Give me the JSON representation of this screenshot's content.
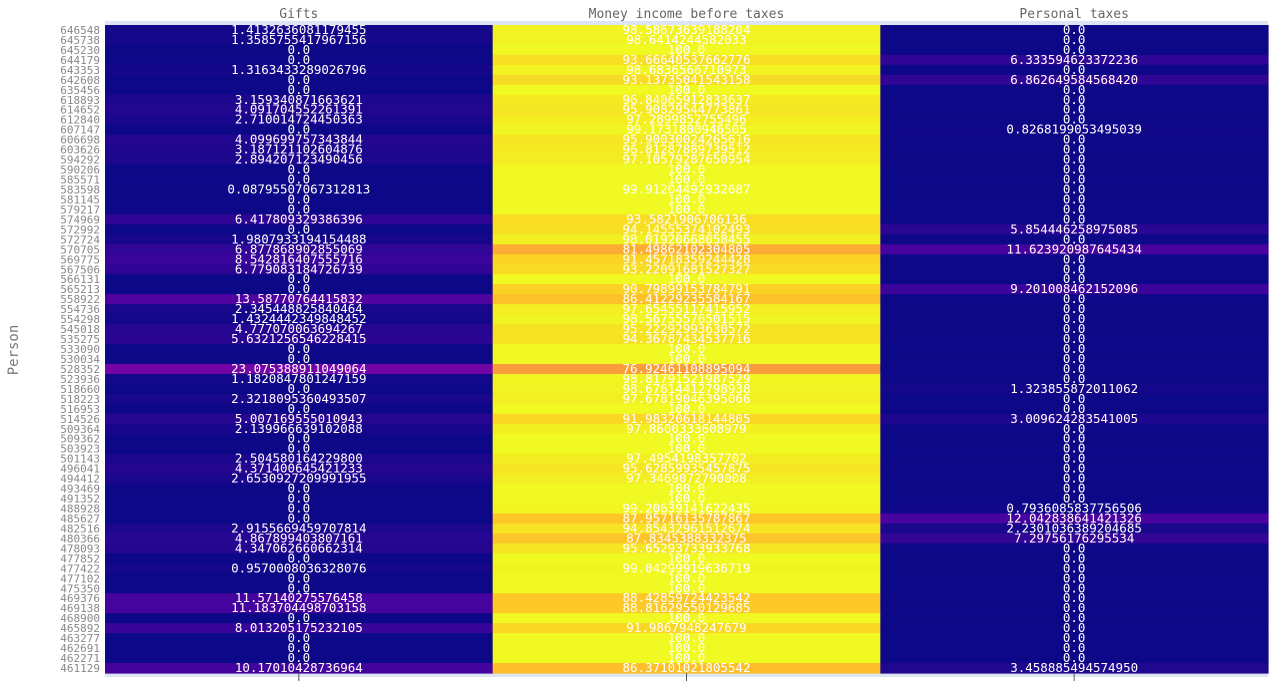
{
  "chart_data": {
    "type": "heatmap",
    "title": "",
    "xlabel": "",
    "ylabel": "Person",
    "columns": [
      "Gifts",
      "Money income before taxes",
      "Personal taxes"
    ],
    "rows": [
      "646548",
      "645738",
      "645230",
      "644179",
      "643353",
      "642608",
      "635456",
      "618893",
      "614652",
      "612840",
      "607147",
      "606698",
      "603626",
      "594292",
      "590206",
      "585571",
      "583598",
      "581145",
      "579217",
      "574969",
      "572992",
      "572724",
      "570705",
      "569775",
      "567506",
      "566131",
      "565213",
      "558922",
      "554736",
      "554298",
      "545018",
      "535275",
      "533090",
      "530034",
      "528352",
      "523936",
      "518660",
      "518223",
      "516953",
      "514526",
      "509364",
      "509362",
      "503923",
      "501143",
      "496041",
      "494412",
      "493469",
      "491352",
      "488928",
      "485627",
      "482516",
      "480366",
      "478093",
      "477852",
      "477422",
      "477102",
      "475350",
      "469376",
      "469138",
      "468900",
      "465892",
      "463277",
      "462691",
      "462271",
      "461129"
    ],
    "values": [
      [
        "1.4132636081179455",
        "98.58673639188204",
        "0.0"
      ],
      [
        "1.3585755417967156",
        "98.6414244582033",
        "0.0"
      ],
      [
        "0.0",
        "100.0",
        "0.0"
      ],
      [
        "0.0",
        "93.66640537662776",
        "6.333594623372236"
      ],
      [
        "1.3163433289026796",
        "98.6836566710973",
        "0.0"
      ],
      [
        "0.0",
        "93.13735041543158",
        "6.862649584568420"
      ],
      [
        "0.0",
        "100.0",
        "0.0"
      ],
      [
        "3.159340871663621",
        "96.84065912833637",
        "0.0"
      ],
      [
        "4.091704552261391",
        "95.90829544773861",
        "0.0"
      ],
      [
        "2.710014724450363",
        "97.2899852755496",
        "0.0"
      ],
      [
        "0.0",
        "99.1731800946505",
        "0.8268199053495039"
      ],
      [
        "4.099699757343844",
        "95.90030024265616",
        "0.0"
      ],
      [
        "3.187121102604876",
        "96.81287889739512",
        "0.0"
      ],
      [
        "2.894207123490456",
        "97.10579287650954",
        "0.0"
      ],
      [
        "0.0",
        "100.0",
        "0.0"
      ],
      [
        "0.0",
        "100.0",
        "0.0"
      ],
      [
        "0.08795507067312813",
        "99.91204492932687",
        "0.0"
      ],
      [
        "0.0",
        "100.0",
        "0.0"
      ],
      [
        "0.0",
        "100.0",
        "0.0"
      ],
      [
        "6.417809329386396",
        "93.5821906706136",
        "0.0"
      ],
      [
        "0.0",
        "94.14555374102493",
        "5.854446258975085"
      ],
      [
        "1.9807933194154488",
        "98.01920668058455",
        "0.0"
      ],
      [
        "6.877868902855069",
        "81.49862102304805",
        "11.623920987645434"
      ],
      [
        "8.542816407555716",
        "91.45718359244428",
        "0.0"
      ],
      [
        "6.779083184726739",
        "93.22091681527327",
        "0.0"
      ],
      [
        "0.0",
        "100.0",
        "0.0"
      ],
      [
        "0.0",
        "90.79899153784791",
        "9.201008462152096"
      ],
      [
        "13.58770764415832",
        "86.41229235584167",
        "0.0"
      ],
      [
        "2.345448825840464",
        "97.65455117415952",
        "0.0"
      ],
      [
        "1.4324442349848452",
        "98.56755576501515",
        "0.0"
      ],
      [
        "4.777070063694267",
        "95.22292993630572",
        "0.0"
      ],
      [
        "5.6321256546228415",
        "94.36787434537716",
        "0.0"
      ],
      [
        "0.0",
        "100.0",
        "0.0"
      ],
      [
        "0.0",
        "100.0",
        "0.0"
      ],
      [
        "23.075388911049064",
        "76.92461108895094",
        "0.0"
      ],
      [
        "1.1820847801247159",
        "98.81791521987529",
        "0.0"
      ],
      [
        "0.0",
        "98.67614412798938",
        "1.323855872011062"
      ],
      [
        "2.3218095360493507",
        "97.67819046395066",
        "0.0"
      ],
      [
        "0.0",
        "100.0",
        "0.0"
      ],
      [
        "5.007169555010943",
        "91.98320618144805",
        "3.009624283541005"
      ],
      [
        "2.139966639102088",
        "97.8600333608979",
        "0.0"
      ],
      [
        "0.0",
        "100.0",
        "0.0"
      ],
      [
        "0.0",
        "100.0",
        "0.0"
      ],
      [
        "2.504580164229800",
        "97.4954198357702",
        "0.0"
      ],
      [
        "4.371400645421233",
        "95.62859935457875",
        "0.0"
      ],
      [
        "2.6530927209991955",
        "97.3469072790008",
        "0.0"
      ],
      [
        "0.0",
        "100.0",
        "0.0"
      ],
      [
        "0.0",
        "100.0",
        "0.0"
      ],
      [
        "0.0",
        "99.20639141622435",
        "0.7936085837756506"
      ],
      [
        "0.0",
        "87.95716135787867",
        "12.042838641421326"
      ],
      [
        "2.9155669459707814",
        "94.85432961512674",
        "2.2301036389204685"
      ],
      [
        "4.867899403807161",
        "87.8345388332375",
        "7.29756176295534"
      ],
      [
        "4.347062660662314",
        "95.65293733933768",
        "0.0"
      ],
      [
        "0.0",
        "100.0",
        "0.0"
      ],
      [
        "0.9570008036328076",
        "99.04299919636719",
        "0.0"
      ],
      [
        "0.0",
        "100.0",
        "0.0"
      ],
      [
        "0.0",
        "100.0",
        "0.0"
      ],
      [
        "11.57140275576458",
        "88.42859724423542",
        "0.0"
      ],
      [
        "11.183704498703158",
        "88.81629550129685",
        "0.0"
      ],
      [
        "0.0",
        "100.0",
        "0.0"
      ],
      [
        "8.013205175232105",
        "91.9867948247679",
        "0.0"
      ],
      [
        "0.0",
        "100.0",
        "0.0"
      ],
      [
        "0.0",
        "100.0",
        "0.0"
      ],
      [
        "0.0",
        "100.0",
        "0.0"
      ],
      [
        "10.17010428736964",
        "86.37101021805542",
        "3.458885494574950"
      ]
    ],
    "color_scale": "plasma",
    "color_range": [
      0,
      100
    ]
  }
}
